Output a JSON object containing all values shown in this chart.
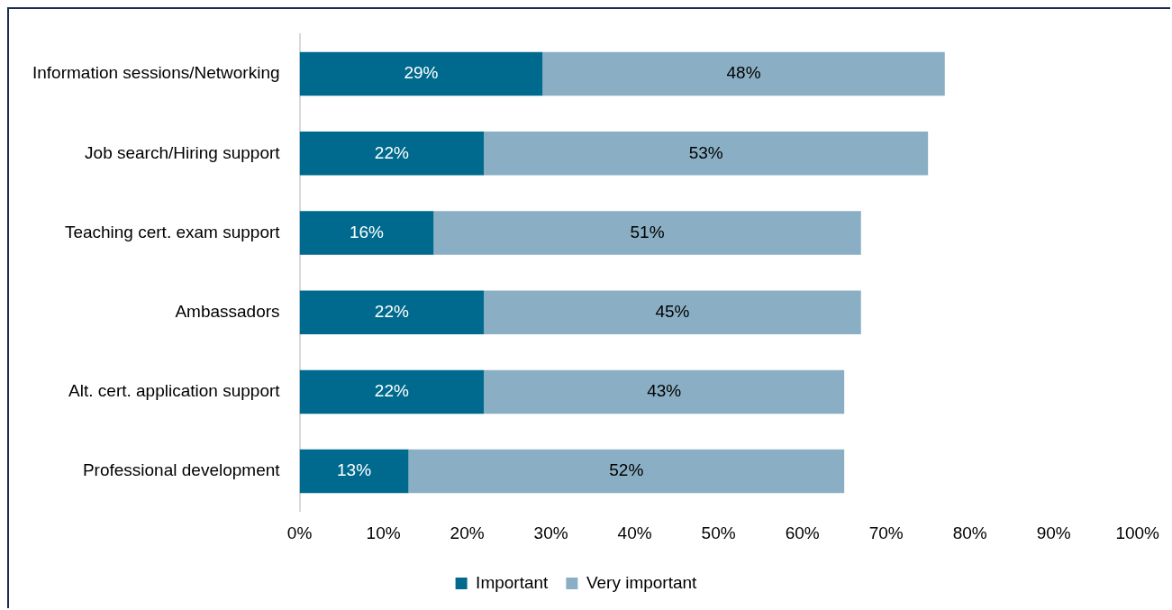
{
  "chart_data": {
    "type": "bar",
    "orientation": "horizontal",
    "stacked": true,
    "categories": [
      "Information sessions/Networking",
      "Job search/Hiring support",
      "Teaching cert. exam support",
      "Ambassadors",
      "Alt. cert. application support",
      "Professional development"
    ],
    "series": [
      {
        "name": "Important",
        "color": "#006a8e",
        "values": [
          29,
          22,
          16,
          22,
          22,
          13
        ],
        "value_labels": [
          "29%",
          "22%",
          "16%",
          "22%",
          "22%",
          "13%"
        ]
      },
      {
        "name": "Very important",
        "color": "#8aafc4",
        "values": [
          48,
          53,
          51,
          45,
          43,
          52
        ],
        "value_labels": [
          "48%",
          "53%",
          "51%",
          "45%",
          "43%",
          "52%"
        ]
      }
    ],
    "xlim": [
      0,
      100
    ],
    "xticks": [
      {
        "value": 0,
        "label": "0%"
      },
      {
        "value": 10,
        "label": "10%"
      },
      {
        "value": 20,
        "label": "20%"
      },
      {
        "value": 30,
        "label": "30%"
      },
      {
        "value": 40,
        "label": "40%"
      },
      {
        "value": 50,
        "label": "50%"
      },
      {
        "value": 60,
        "label": "60%"
      },
      {
        "value": 70,
        "label": "70%"
      },
      {
        "value": 80,
        "label": "80%"
      },
      {
        "value": 90,
        "label": "90%"
      },
      {
        "value": 100,
        "label": "100%"
      }
    ],
    "legend": "bottom"
  }
}
